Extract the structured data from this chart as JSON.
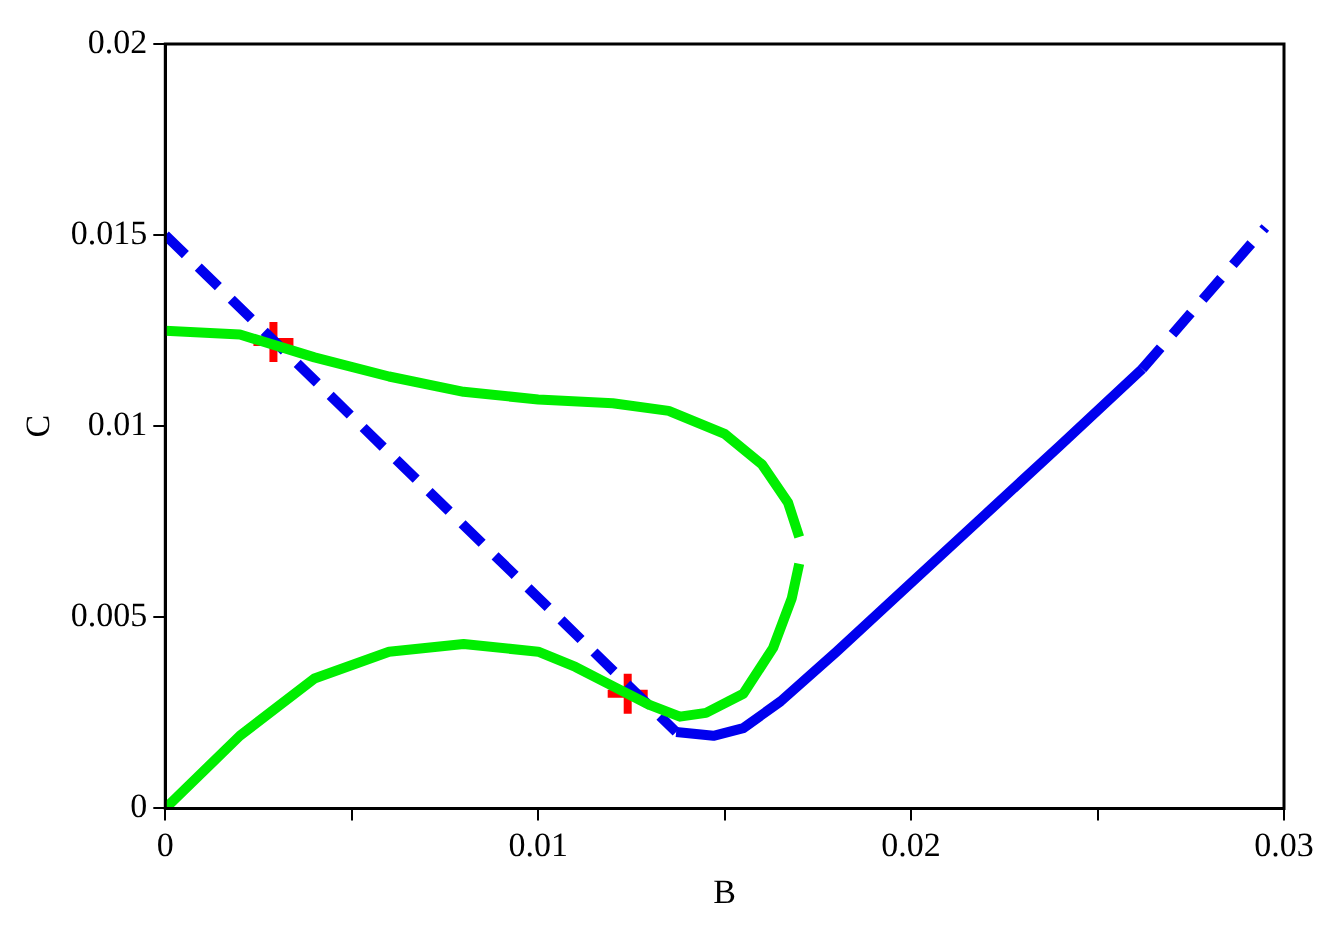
{
  "chart_data": {
    "type": "line",
    "xlabel": "B",
    "ylabel": "C",
    "xlim": [
      0,
      0.03
    ],
    "xticks": [
      0,
      {
        "value": 0.005,
        "label": null
      },
      0.01,
      {
        "value": 0.015,
        "label": null
      },
      0.02,
      {
        "value": 0.025,
        "label": null
      },
      0.03
    ],
    "ylim": [
      0,
      0.02
    ],
    "yticks": [
      0,
      0.005,
      0.01,
      0.015,
      0.02
    ],
    "grid": false,
    "legend": false,
    "series": [
      {
        "color": "#00ee00",
        "line_style": "solid",
        "marker": "none",
        "x": [
          0,
          0.002,
          0.004,
          0.006,
          0.008,
          0.01,
          0.012,
          0.0135,
          0.015,
          0.016,
          0.0167,
          0.017
        ],
        "values": [
          0.0125,
          0.0124,
          0.0118,
          0.0113,
          0.0109,
          0.0107,
          0.0106,
          0.0104,
          0.0098,
          0.009,
          0.008,
          0.0071
        ]
      },
      {
        "color": "#00ee00",
        "line_style": "solid",
        "marker": "none",
        "x": [
          0.017,
          0.0168,
          0.0163,
          0.0155,
          0.0145,
          0.0138,
          0.013,
          0.012,
          0.011,
          0.01,
          0.008,
          0.006,
          0.004,
          0.002,
          0
        ],
        "values": [
          0.0064,
          0.0055,
          0.0042,
          0.003,
          0.0025,
          0.0024,
          0.0027,
          0.0032,
          0.0037,
          0.0041,
          0.0043,
          0.0041,
          0.0034,
          0.0019,
          0
        ]
      },
      {
        "color": "#0000ee",
        "line_style": "dashed",
        "marker": "none",
        "x": [
          0,
          0.0137
        ],
        "values": [
          0.015,
          0.002
        ]
      },
      {
        "color": "#0000ee",
        "line_style": "dashed",
        "marker": "none",
        "x": [
          0.0262,
          0.0295
        ],
        "values": [
          0.0115,
          0.0152
        ]
      },
      {
        "color": "#0000ee",
        "line_style": "solid",
        "marker": "none",
        "x": [
          0.0137,
          0.0147,
          0.0155,
          0.0165,
          0.018,
          0.02,
          0.022,
          0.024,
          0.0262
        ],
        "values": [
          0.002,
          0.0019,
          0.0021,
          0.0028,
          0.0041,
          0.0059,
          0.0077,
          0.0095,
          0.0115
        ]
      },
      {
        "type": "scatter",
        "color": "#ff0000",
        "marker": "cross",
        "x": [
          0.0029,
          0.0124
        ],
        "values": [
          0.0122,
          0.003
        ]
      }
    ]
  }
}
